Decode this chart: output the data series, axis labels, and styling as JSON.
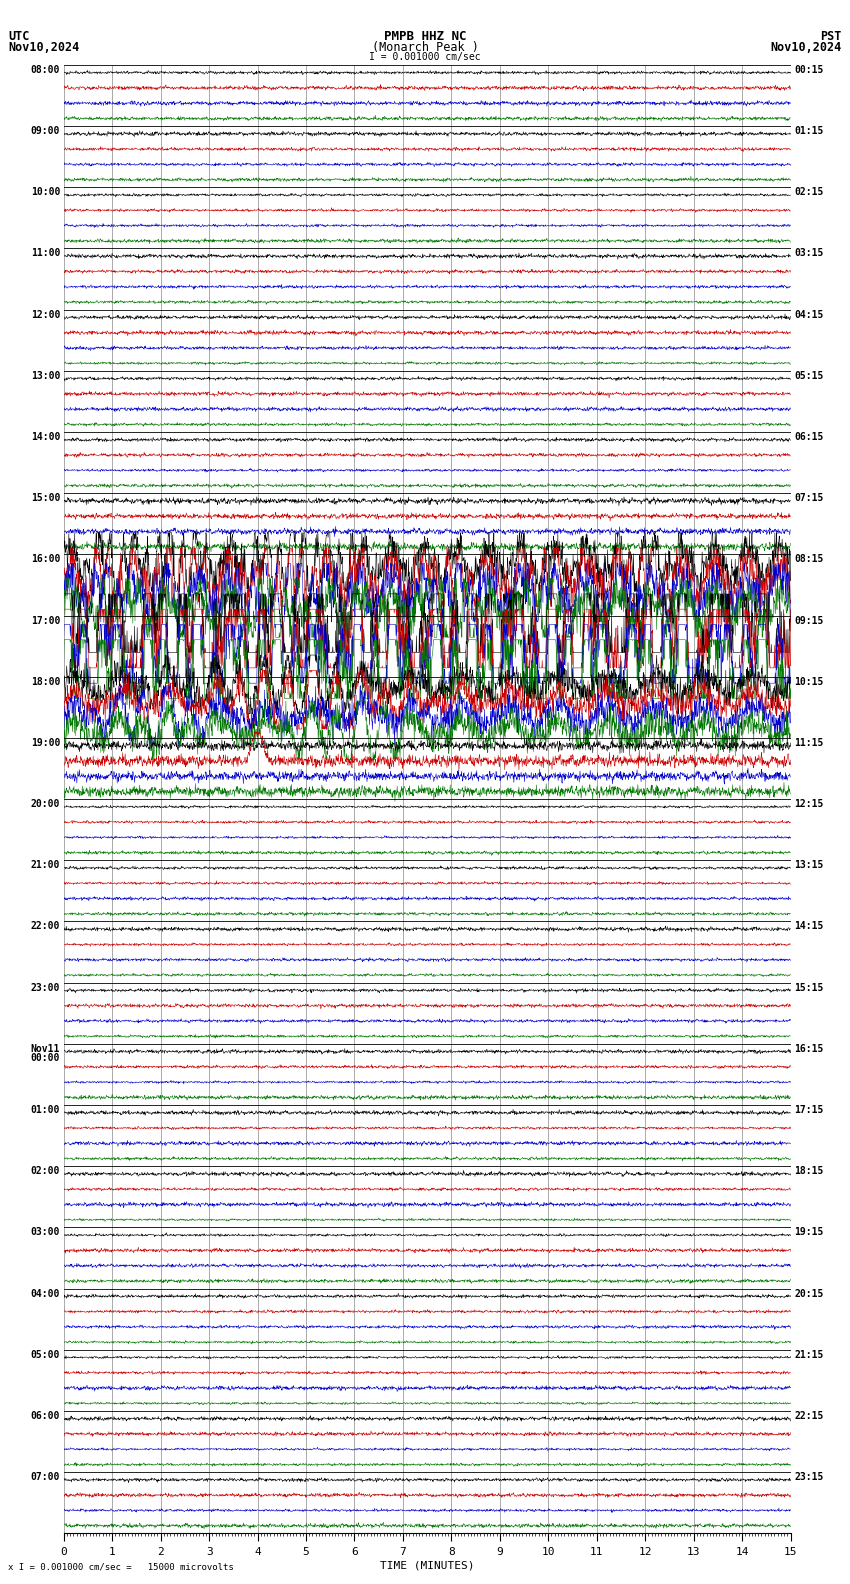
{
  "title_line1": "PMPB HHZ NC",
  "title_line2": "(Monarch Peak )",
  "scale_text": "I = 0.001000 cm/sec",
  "utc_label": "UTC",
  "utc_date": "Nov10,2024",
  "pst_label": "PST",
  "pst_date": "Nov10,2024",
  "xlabel": "TIME (MINUTES)",
  "bottom_note": "x I = 0.001000 cm/sec =   15000 microvolts",
  "bg_color": "#ffffff",
  "trace_colors": [
    "#000000",
    "#cc0000",
    "#0000cc",
    "#007700"
  ],
  "x_min": 0,
  "x_max": 15,
  "num_rows": 24,
  "traces_per_row": 4,
  "utc_times": [
    "08:00",
    "09:00",
    "10:00",
    "11:00",
    "12:00",
    "13:00",
    "14:00",
    "15:00",
    "16:00",
    "17:00",
    "18:00",
    "19:00",
    "20:00",
    "21:00",
    "22:00",
    "23:00",
    "Nov11\n00:00",
    "01:00",
    "02:00",
    "03:00",
    "04:00",
    "05:00",
    "06:00",
    "07:00"
  ],
  "pst_times": [
    "00:15",
    "01:15",
    "02:15",
    "03:15",
    "04:15",
    "05:15",
    "06:15",
    "07:15",
    "08:15",
    "09:15",
    "10:15",
    "11:15",
    "12:15",
    "13:15",
    "14:15",
    "15:15",
    "16:15",
    "17:15",
    "18:15",
    "19:15",
    "20:15",
    "21:15",
    "22:15",
    "23:15"
  ]
}
